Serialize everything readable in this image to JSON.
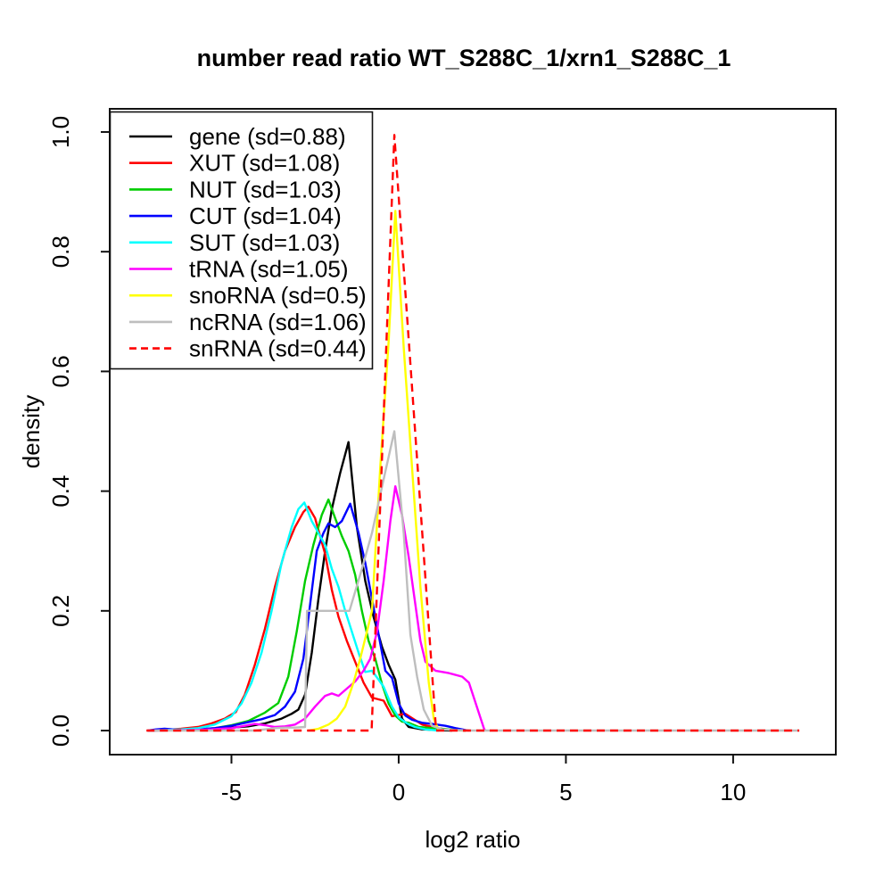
{
  "chart_data": {
    "type": "line",
    "title": "number read ratio WT_S288C_1/xrn1_S288C_1",
    "xlabel": "log2 ratio",
    "ylabel": "density",
    "xlim": [
      -8.64,
      13.07
    ],
    "ylim": [
      -0.0402,
      1.0387
    ],
    "grid": false,
    "legend_position": "top-left",
    "x_ticks": [
      {
        "v": -5,
        "label": "-5"
      },
      {
        "v": 0,
        "label": "0"
      },
      {
        "v": 5,
        "label": "5"
      },
      {
        "v": 10,
        "label": "10"
      }
    ],
    "y_ticks": [
      {
        "v": 0.0,
        "label": "0.0"
      },
      {
        "v": 0.2,
        "label": "0.2"
      },
      {
        "v": 0.4,
        "label": "0.4"
      },
      {
        "v": 0.6,
        "label": "0.6"
      },
      {
        "v": 0.8,
        "label": "0.8"
      },
      {
        "v": 1.0,
        "label": "1.0"
      }
    ],
    "series": [
      {
        "id": "gene",
        "name": "gene (sd=0.88)",
        "color": "#000000",
        "linetype": "solid",
        "points": [
          [
            -7.5,
            0
          ],
          [
            -6.5,
            0.001
          ],
          [
            -6,
            0.002
          ],
          [
            -5.5,
            0.003
          ],
          [
            -5,
            0.005
          ],
          [
            -4.5,
            0.007
          ],
          [
            -4,
            0.012
          ],
          [
            -3.5,
            0.02
          ],
          [
            -3.2,
            0.028
          ],
          [
            -3,
            0.035
          ],
          [
            -2.8,
            0.06
          ],
          [
            -2.6,
            0.13
          ],
          [
            -2.4,
            0.22
          ],
          [
            -2.2,
            0.3
          ],
          [
            -2,
            0.37
          ],
          [
            -1.75,
            0.43
          ],
          [
            -1.5,
            0.482
          ],
          [
            -1.25,
            0.34
          ],
          [
            -1,
            0.25
          ],
          [
            -0.75,
            0.19
          ],
          [
            -0.5,
            0.14
          ],
          [
            -0.3,
            0.11
          ],
          [
            -0.1,
            0.085
          ],
          [
            0.1,
            0.02
          ],
          [
            0.3,
            0.006
          ],
          [
            0.7,
            0.002
          ],
          [
            1.2,
            0.001
          ],
          [
            1.6,
            0
          ]
        ]
      },
      {
        "id": "xut",
        "name": "XUT (sd=1.08)",
        "color": "#FF0000",
        "linetype": "solid",
        "points": [
          [
            -7.5,
            0
          ],
          [
            -7,
            0.001
          ],
          [
            -6.5,
            0.003
          ],
          [
            -6,
            0.006
          ],
          [
            -5.6,
            0.012
          ],
          [
            -5.2,
            0.02
          ],
          [
            -4.87,
            0.031
          ],
          [
            -4.6,
            0.06
          ],
          [
            -4.3,
            0.11
          ],
          [
            -4,
            0.17
          ],
          [
            -3.7,
            0.24
          ],
          [
            -3.4,
            0.3
          ],
          [
            -3.1,
            0.34
          ],
          [
            -2.85,
            0.365
          ],
          [
            -2.7,
            0.374
          ],
          [
            -2.5,
            0.355
          ],
          [
            -2.2,
            0.295
          ],
          [
            -2,
            0.235
          ],
          [
            -1.8,
            0.19
          ],
          [
            -1.55,
            0.15
          ],
          [
            -1.3,
            0.115
          ],
          [
            -1.05,
            0.08
          ],
          [
            -0.8,
            0.055
          ],
          [
            -0.45,
            0.05
          ],
          [
            -0.2,
            0.024
          ],
          [
            0.2,
            0.028
          ],
          [
            0.7,
            0.01
          ],
          [
            1.15,
            0.004
          ],
          [
            1.6,
            0.001
          ],
          [
            2,
            0
          ]
        ]
      },
      {
        "id": "nut",
        "name": "NUT (sd=1.03)",
        "color": "#00CD00",
        "linetype": "solid",
        "points": [
          [
            -7.5,
            0
          ],
          [
            -6.5,
            0.001
          ],
          [
            -6,
            0.002
          ],
          [
            -5.5,
            0.004
          ],
          [
            -5,
            0.009
          ],
          [
            -4.5,
            0.016
          ],
          [
            -4,
            0.03
          ],
          [
            -3.6,
            0.046
          ],
          [
            -3.3,
            0.09
          ],
          [
            -3.05,
            0.165
          ],
          [
            -2.8,
            0.25
          ],
          [
            -2.55,
            0.31
          ],
          [
            -2.3,
            0.36
          ],
          [
            -2.1,
            0.386
          ],
          [
            -1.9,
            0.355
          ],
          [
            -1.7,
            0.325
          ],
          [
            -1.5,
            0.3
          ],
          [
            -1.3,
            0.26
          ],
          [
            -1.1,
            0.2
          ],
          [
            -0.9,
            0.15
          ],
          [
            -0.7,
            0.12
          ],
          [
            -0.5,
            0.078
          ],
          [
            -0.3,
            0.045
          ],
          [
            -0.1,
            0.025
          ],
          [
            0.1,
            0.015
          ],
          [
            0.3,
            0.013
          ],
          [
            0.6,
            0.006
          ],
          [
            1,
            0.004
          ],
          [
            1.5,
            0.002
          ],
          [
            2,
            0
          ]
        ]
      },
      {
        "id": "cut",
        "name": "CUT (sd=1.04)",
        "color": "#0000FF",
        "linetype": "solid",
        "points": [
          [
            -7.5,
            0
          ],
          [
            -7.25,
            0.002
          ],
          [
            -7,
            0.003
          ],
          [
            -6.75,
            0.002
          ],
          [
            -6.4,
            0.001
          ],
          [
            -6,
            0.002
          ],
          [
            -5.5,
            0.004
          ],
          [
            -5,
            0.008
          ],
          [
            -4.5,
            0.014
          ],
          [
            -4.1,
            0.019
          ],
          [
            -3.7,
            0.026
          ],
          [
            -3.4,
            0.04
          ],
          [
            -3.1,
            0.065
          ],
          [
            -2.85,
            0.12
          ],
          [
            -2.65,
            0.21
          ],
          [
            -2.45,
            0.3
          ],
          [
            -2.25,
            0.33
          ],
          [
            -2.1,
            0.346
          ],
          [
            -1.9,
            0.34
          ],
          [
            -1.7,
            0.35
          ],
          [
            -1.45,
            0.379
          ],
          [
            -1.2,
            0.33
          ],
          [
            -1,
            0.28
          ],
          [
            -0.8,
            0.22
          ],
          [
            -0.6,
            0.16
          ],
          [
            -0.4,
            0.1
          ],
          [
            -0.2,
            0.088
          ],
          [
            0,
            0.045
          ],
          [
            0.2,
            0.025
          ],
          [
            0.4,
            0.018
          ],
          [
            0.7,
            0.013
          ],
          [
            1,
            0.011
          ],
          [
            1.4,
            0.008
          ],
          [
            1.7,
            0.004
          ],
          [
            2,
            0.001
          ],
          [
            2.1,
            0
          ]
        ]
      },
      {
        "id": "sut",
        "name": "SUT (sd=1.03)",
        "color": "#00FFFF",
        "linetype": "solid",
        "points": [
          [
            -7.5,
            0
          ],
          [
            -7,
            0.001
          ],
          [
            -6.5,
            0.002
          ],
          [
            -6,
            0.004
          ],
          [
            -5.5,
            0.01
          ],
          [
            -5,
            0.024
          ],
          [
            -4.7,
            0.045
          ],
          [
            -4.4,
            0.08
          ],
          [
            -4.1,
            0.13
          ],
          [
            -3.8,
            0.2
          ],
          [
            -3.5,
            0.28
          ],
          [
            -3.2,
            0.34
          ],
          [
            -3,
            0.37
          ],
          [
            -2.82,
            0.381
          ],
          [
            -2.6,
            0.35
          ],
          [
            -2.4,
            0.33
          ],
          [
            -2.2,
            0.31
          ],
          [
            -2,
            0.27
          ],
          [
            -1.8,
            0.24
          ],
          [
            -1.6,
            0.2
          ],
          [
            -1.4,
            0.165
          ],
          [
            -1.2,
            0.13
          ],
          [
            -1,
            0.098
          ],
          [
            -0.8,
            0.1
          ],
          [
            -0.6,
            0.085
          ],
          [
            -0.45,
            0.073
          ],
          [
            -0.2,
            0.04
          ],
          [
            0,
            0.022
          ],
          [
            0.25,
            0.012
          ],
          [
            0.48,
            0.006
          ],
          [
            0.8,
            0.002
          ],
          [
            1.2,
            0
          ]
        ]
      },
      {
        "id": "trna",
        "name": "tRNA (sd=1.05)",
        "color": "#FF00FF",
        "linetype": "solid",
        "points": [
          [
            -7.5,
            0
          ],
          [
            -6.2,
            0.001
          ],
          [
            -5.6,
            0.002
          ],
          [
            -5,
            0.004
          ],
          [
            -4.6,
            0.008
          ],
          [
            -4.3,
            0.011
          ],
          [
            -4,
            0.009
          ],
          [
            -3.7,
            0.006
          ],
          [
            -3.4,
            0.007
          ],
          [
            -3.1,
            0.01
          ],
          [
            -2.8,
            0.02
          ],
          [
            -2.5,
            0.04
          ],
          [
            -2.2,
            0.058
          ],
          [
            -2,
            0.062
          ],
          [
            -1.8,
            0.058
          ],
          [
            -1.55,
            0.07
          ],
          [
            -1.3,
            0.082
          ],
          [
            -1.05,
            0.1
          ],
          [
            -0.85,
            0.12
          ],
          [
            -0.65,
            0.165
          ],
          [
            -0.45,
            0.25
          ],
          [
            -0.25,
            0.35
          ],
          [
            -0.1,
            0.408
          ],
          [
            0.1,
            0.36
          ],
          [
            0.3,
            0.29
          ],
          [
            0.5,
            0.21
          ],
          [
            0.65,
            0.15
          ],
          [
            0.8,
            0.115
          ],
          [
            1.1,
            0.1
          ],
          [
            1.5,
            0.096
          ],
          [
            1.9,
            0.09
          ],
          [
            2.1,
            0.08
          ],
          [
            2.56,
            0.002
          ],
          [
            2.6,
            0
          ]
        ]
      },
      {
        "id": "snorna",
        "name": "snoRNA (sd=0.5)",
        "color": "#FFFF00",
        "linetype": "solid",
        "points": [
          [
            -2.7,
            0
          ],
          [
            -2.4,
            0.003
          ],
          [
            -2.1,
            0.01
          ],
          [
            -1.85,
            0.02
          ],
          [
            -1.6,
            0.04
          ],
          [
            -1.35,
            0.08
          ],
          [
            -1.15,
            0.12
          ],
          [
            -0.95,
            0.165
          ],
          [
            -0.8,
            0.2
          ],
          [
            -0.55,
            0.44
          ],
          [
            -0.3,
            0.65
          ],
          [
            -0.1,
            0.868
          ],
          [
            0.15,
            0.64
          ],
          [
            0.4,
            0.44
          ],
          [
            0.65,
            0.24
          ],
          [
            0.9,
            0.08
          ],
          [
            1.05,
            0.02
          ],
          [
            1.2,
            0
          ]
        ]
      },
      {
        "id": "ncrna",
        "name": "ncRNA (sd=1.06)",
        "color": "#BEBEBE",
        "linetype": "solid",
        "points": [
          [
            -7.5,
            0
          ],
          [
            -4.3,
            0
          ],
          [
            -4,
            0.002
          ],
          [
            -3.7,
            0.004
          ],
          [
            -3.4,
            0.005
          ],
          [
            -3.1,
            0.005
          ],
          [
            -2.8,
            0.006
          ],
          [
            -2.74,
            0.2
          ],
          [
            -2.4,
            0.2
          ],
          [
            -2,
            0.2
          ],
          [
            -1.47,
            0.2
          ],
          [
            -1.1,
            0.27
          ],
          [
            -0.8,
            0.33
          ],
          [
            -0.45,
            0.42
          ],
          [
            -0.13,
            0.5
          ],
          [
            0.15,
            0.33
          ],
          [
            0.35,
            0.16
          ],
          [
            0.55,
            0.09
          ],
          [
            0.75,
            0.035
          ],
          [
            1,
            0.008
          ],
          [
            1.3,
            0.002
          ],
          [
            1.7,
            0.001
          ],
          [
            2.2,
            0
          ],
          [
            11.95,
            0
          ]
        ]
      },
      {
        "id": "snrna",
        "name": "snRNA (sd=0.44)",
        "color": "#FF0000",
        "linetype": "dashed",
        "points": [
          [
            -7.54,
            0
          ],
          [
            -4,
            0
          ],
          [
            -0.81,
            0
          ],
          [
            -0.13,
            0.995
          ],
          [
            1.12,
            0
          ],
          [
            3,
            0
          ],
          [
            6,
            0
          ],
          [
            9,
            0
          ],
          [
            11.98,
            0
          ]
        ]
      }
    ]
  }
}
